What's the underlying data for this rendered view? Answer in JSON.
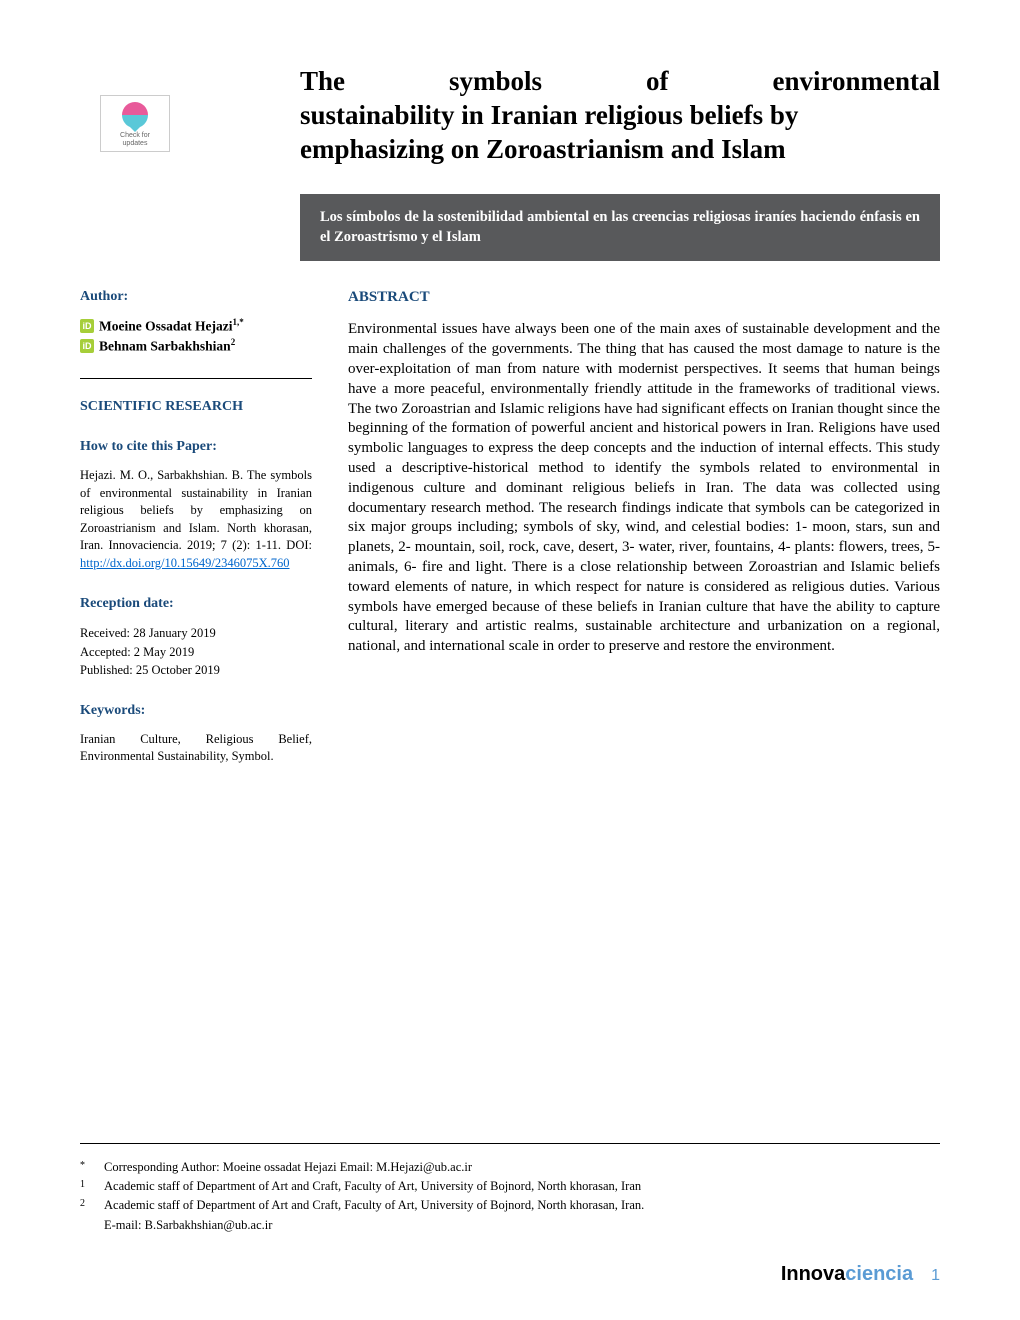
{
  "badge": {
    "line1": "Check for",
    "line2": "updates"
  },
  "title": {
    "line1_words": [
      "The",
      "symbols",
      "of",
      "environmental"
    ],
    "line2": "sustainability in Iranian religious beliefs by",
    "line3": "emphasizing on Zoroastrianism and Islam"
  },
  "subtitle": "Los símbolos de la sostenibilidad ambiental en las creencias religiosas iraníes haciendo énfasis en el Zoroastrismo y el Islam",
  "sidebar": {
    "author_label": "Author:",
    "authors": [
      {
        "name": "Moeine Ossadat Hejazi",
        "sup": "1,*"
      },
      {
        "name": "Behnam Sarbakhshian",
        "sup": "2"
      }
    ],
    "research_type": "SCIENTIFIC RESEARCH",
    "cite_label": "How to cite this Paper:",
    "cite_text": "Hejazi. M. O., Sarbakhshian. B. The symbols of environmental sustainability in Iranian religious beliefs by emphasizing on Zoroastrianism and Islam. North khorasan, Iran. Innovaciencia. 2019; 7 (2): 1-11. DOI: ",
    "doi": "http://dx.doi.org/10.15649/2346075X.760",
    "reception_label": "Reception date:",
    "received": "Received: 28 January 2019",
    "accepted": "Accepted: 2 May 2019",
    "published": "Published: 25 October 2019",
    "keywords_label": "Keywords:",
    "keywords": "Iranian Culture, Religious Belief, Environmental Sustainability, Symbol."
  },
  "abstract": {
    "label": "ABSTRACT",
    "text": "Environmental issues have always been one of the main axes of sustainable development and the main challenges of the governments. The thing that has caused the most damage to nature is the over-exploitation of man from nature with modernist perspectives. It seems that human beings have a more peaceful, environmentally friendly attitude in the frameworks of traditional views. The two Zoroastrian and Islamic religions have had significant effects on Iranian thought since the beginning of the formation of powerful ancient and historical powers in Iran. Religions have used symbolic languages to express the deep concepts and the induction of internal effects. This study used a descriptive-historical method to identify the symbols related to environmental in indigenous culture and dominant religious beliefs in Iran. The data was collected using documentary research method. The research findings indicate that symbols can be categorized in six major groups including; symbols of sky, wind, and celestial bodies: 1- moon, stars, sun and planets, 2- mountain, soil, rock, cave, desert, 3- water, river, fountains, 4- plants: flowers, trees, 5- animals, 6- fire and light. There is a close relationship between Zoroastrian and Islamic beliefs toward elements of nature, in which respect for nature is considered as religious duties. Various symbols have emerged because of these beliefs in Iranian culture that have the ability to capture cultural, literary and artistic realms, sustainable architecture and urbanization on a regional, national, and international scale in order to preserve and restore the environment."
  },
  "footnotes": {
    "corr": "Corresponding Author: Moeine ossadat Hejazi Email: M.Hejazi@ub.ac.ir",
    "aff1": "Academic staff of Department of Art and Craft, Faculty of Art, University of Bojnord, North khorasan, Iran",
    "aff2": "Academic staff of Department of Art and Craft, Faculty of Art, University of Bojnord, North khorasan, Iran.",
    "aff2_email": "E-mail: B.Sarbakhshian@ub.ac.ir"
  },
  "journal": {
    "prefix": "Innova",
    "suffix": "ciencia",
    "page": "1"
  }
}
